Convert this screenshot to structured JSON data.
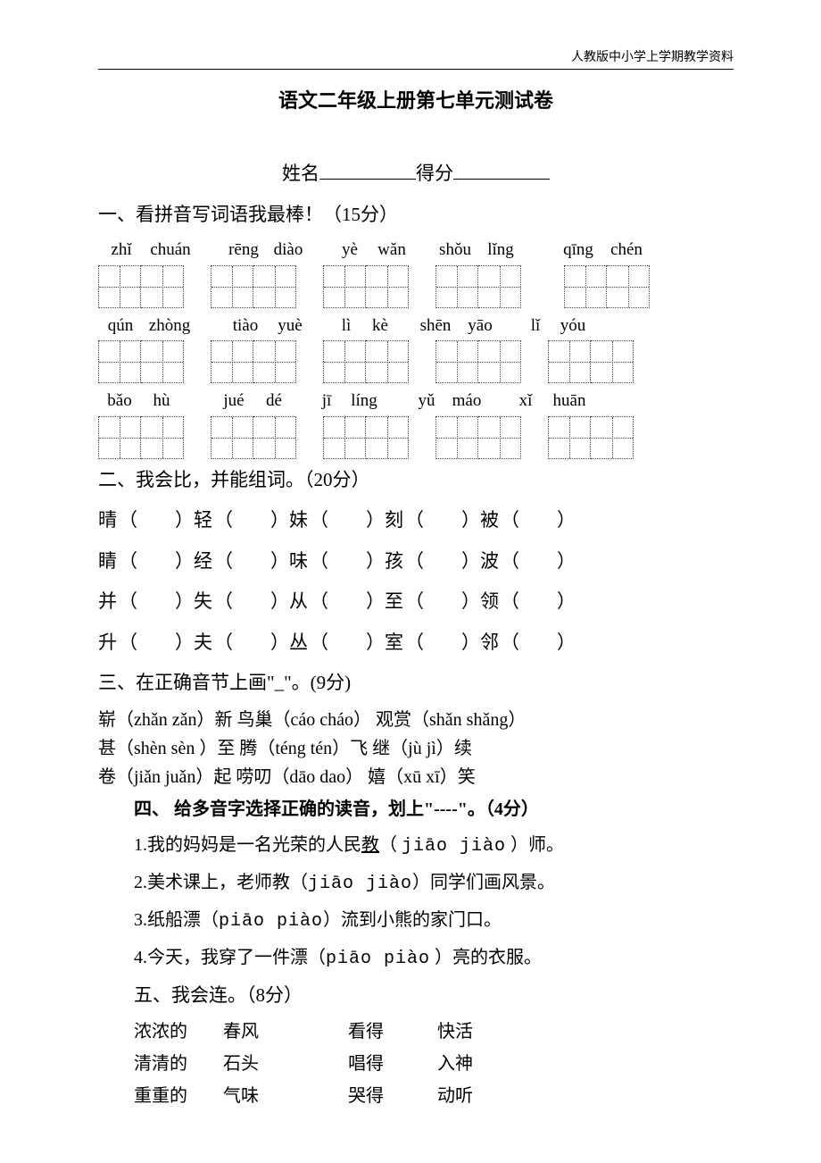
{
  "header": {
    "right": "人教版中小学上学期教学资料"
  },
  "title": "语文二年级上册第七单元测试卷",
  "name_row": {
    "name_label": "姓名",
    "score_label": "得分"
  },
  "q1": {
    "heading": "一、看拼音写词语我最棒！（15分）",
    "rows": [
      {
        "groups": [
          [
            "zhǐ",
            "chuán"
          ],
          [
            "rēng",
            "diào"
          ],
          [
            "yè",
            "wǎn"
          ],
          [
            "shǒu",
            "lǐng"
          ],
          [
            "qīng",
            "chén"
          ]
        ],
        "boxes": [
          2,
          2,
          2,
          2,
          2
        ]
      },
      {
        "groups": [
          [
            "qún",
            "zhòng"
          ],
          [
            "tiào",
            "yuè"
          ],
          [
            "lì",
            "kè"
          ],
          [
            "shēn",
            "yāo"
          ],
          [
            "lǐ",
            "yóu"
          ]
        ],
        "boxes": [
          2,
          2,
          2,
          2,
          2
        ]
      },
      {
        "groups": [
          [
            "bǎo",
            "hù"
          ],
          [
            "jué",
            "dé"
          ],
          [
            "jī",
            "líng"
          ],
          [
            "yǔ",
            "máo"
          ],
          [
            "xǐ",
            "huān"
          ]
        ],
        "boxes": [
          2,
          2,
          2,
          2,
          2
        ]
      }
    ]
  },
  "q2": {
    "heading": "二、我会比，并能组词。（20分）",
    "lines": [
      [
        "晴",
        "轻",
        "妹",
        "刻",
        "被"
      ],
      [
        "睛",
        "经",
        "味",
        "孩",
        "波"
      ],
      [
        "并",
        "失",
        "从",
        "至",
        "领"
      ],
      [
        "升",
        "夫",
        "丛",
        "室",
        "邻"
      ]
    ]
  },
  "q3": {
    "heading": "三、在正确音节上画\"_\"。(9分)",
    "lines": [
      "崭（zhǎn zǎn）新  鸟巢（cáo cháo）  观赏（shǎn shǎng）",
      "甚（shèn sèn ）至  腾（téng tén）飞  继（jù jì）续",
      "卷（jiǎn juǎn）起  唠叨（dāo dao）  嬉（xū xī）笑"
    ]
  },
  "q4": {
    "heading": "四、 给多音字选择正确的读音，划上\"----\"。（4分）",
    "lines": [
      {
        "n": "1.",
        "pre": "我的妈妈是一名光荣的人民",
        "u": "教",
        "mid": "（ ",
        "py": "jiāo  jiào",
        "post": " ）师。"
      },
      {
        "n": "2.",
        "text": "美术课上，老师教（jiāo  jiào）同学们画风景。"
      },
      {
        "n": "3.",
        "text": "纸船漂（piāo  piào）流到小熊的家门口。"
      },
      {
        "n": "4.",
        "text": "今天，我穿了一件漂（piāo  piào ）亮的衣服。"
      }
    ]
  },
  "q5": {
    "heading": "五、我会连。（8分）",
    "rows": [
      [
        "浓浓的",
        "春风",
        "看得",
        "快活"
      ],
      [
        "清清的",
        "石头",
        "唱得",
        "入神"
      ],
      [
        "重重的",
        "气味",
        "哭得",
        "动听"
      ]
    ]
  }
}
